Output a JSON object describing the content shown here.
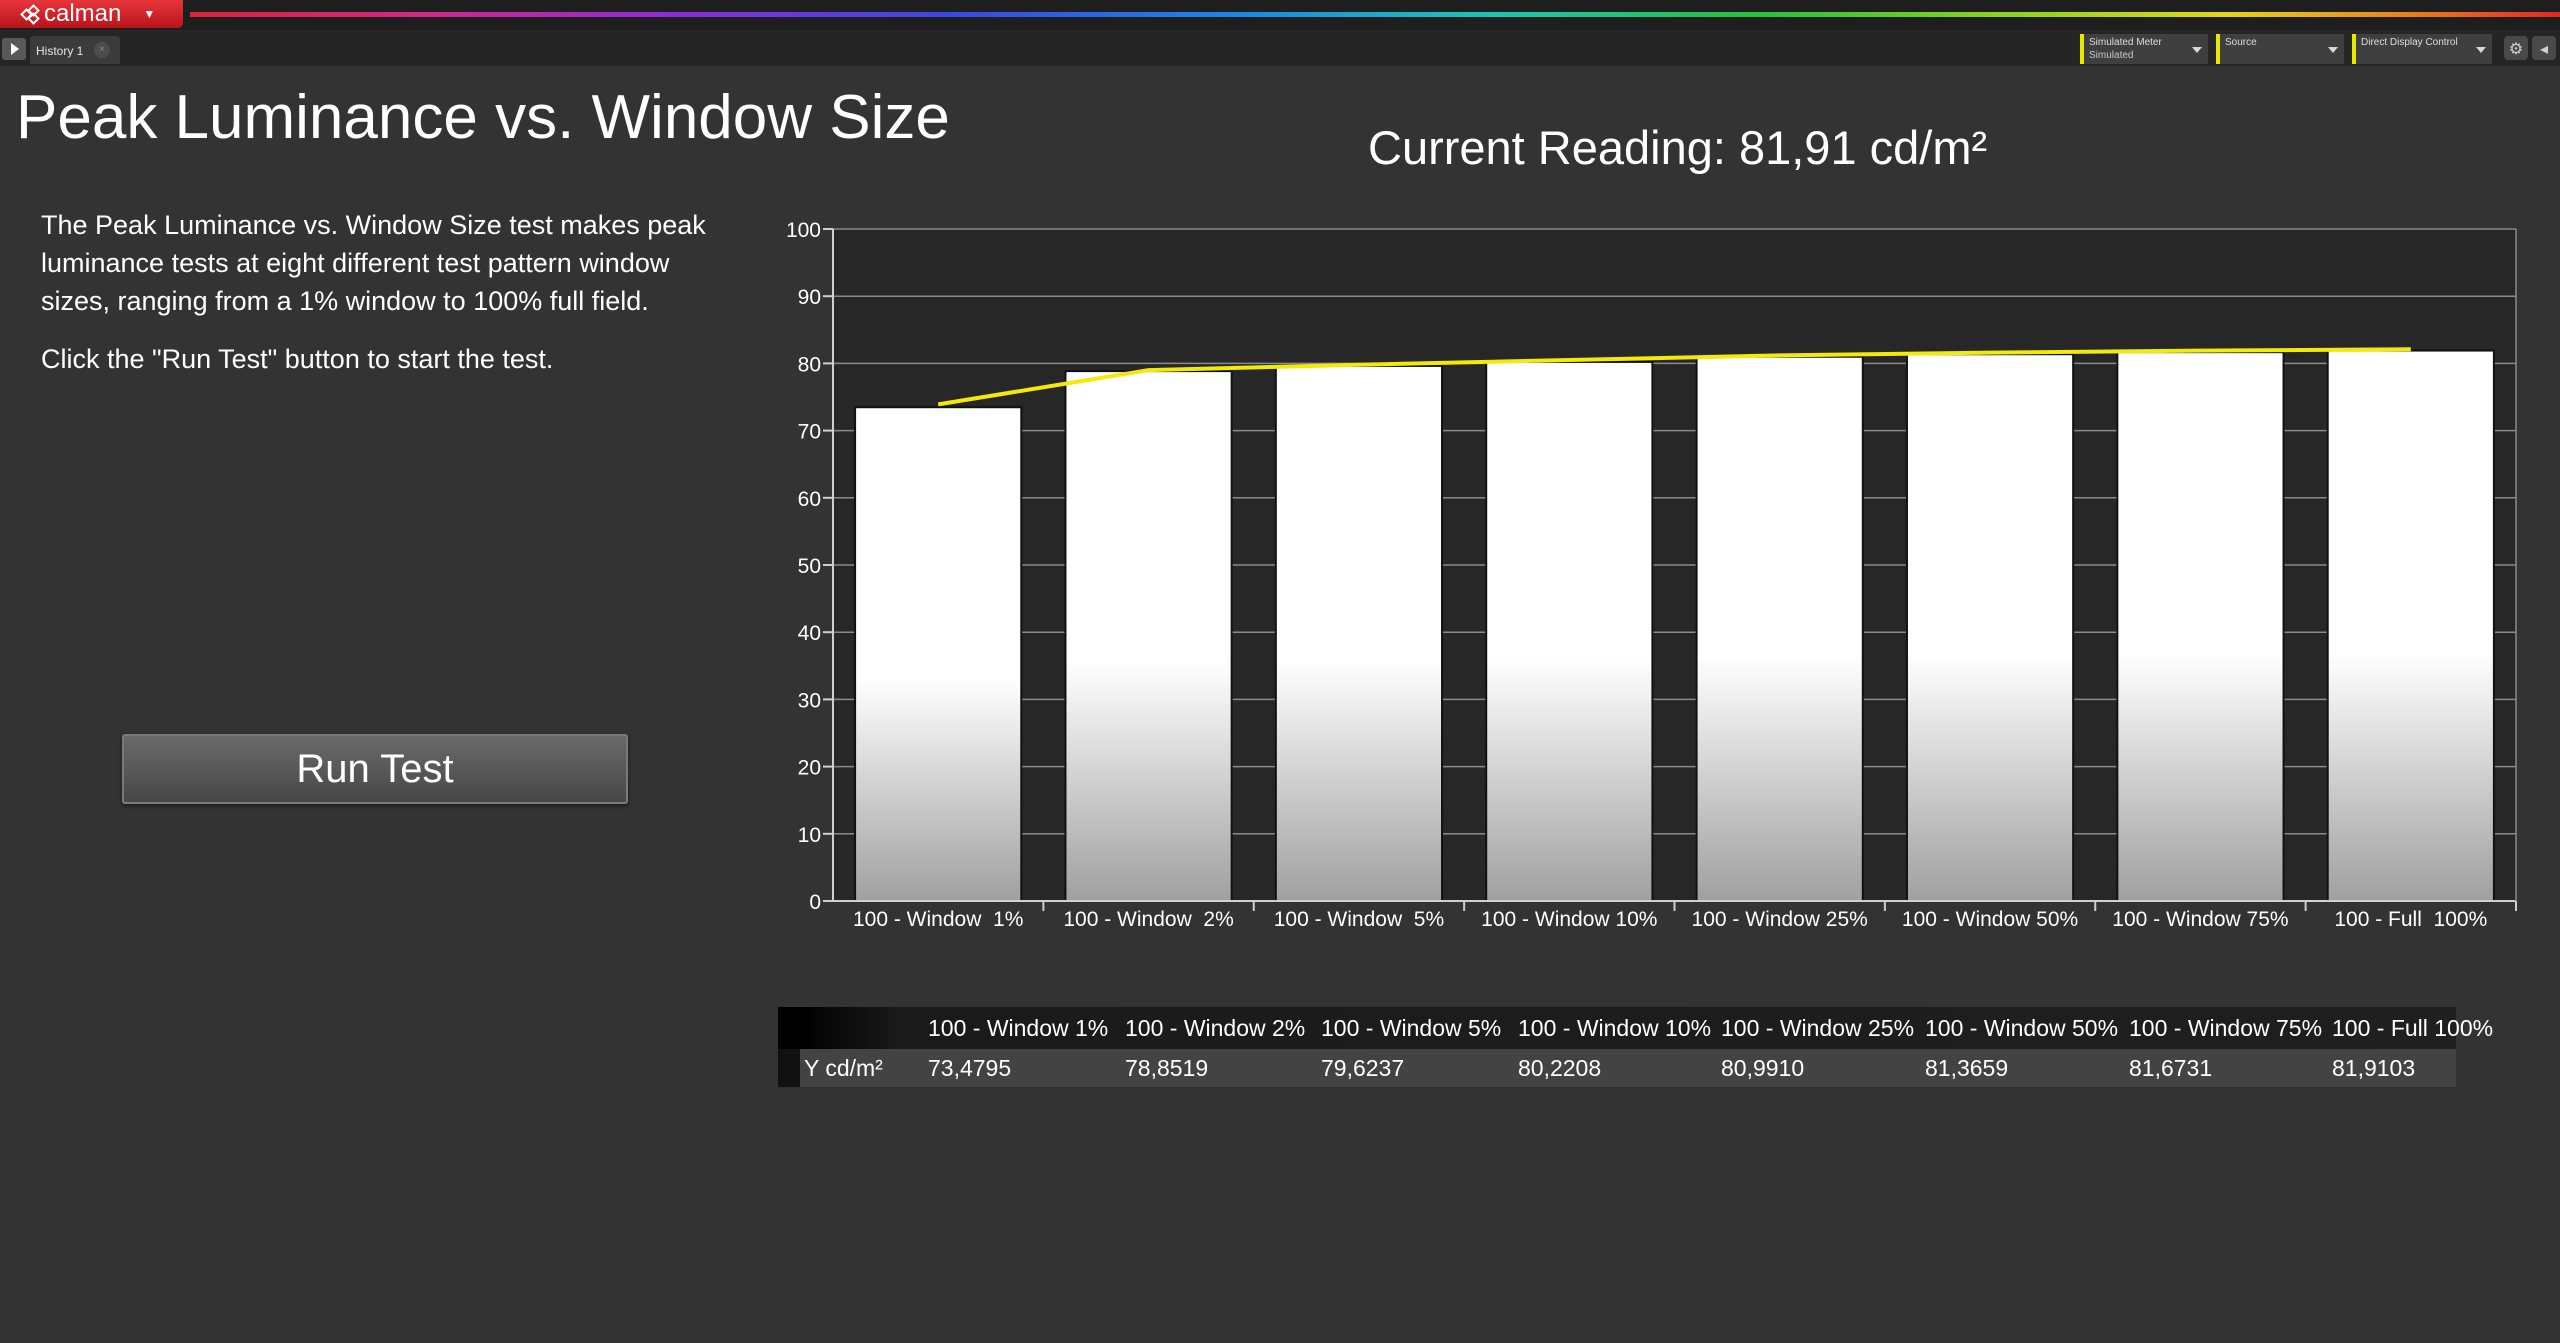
{
  "app": {
    "logo_text": "calman"
  },
  "tabs": [
    {
      "label": "History 1"
    }
  ],
  "toolbar": {
    "meter": {
      "label": "Simulated Meter",
      "value": "Simulated"
    },
    "source": {
      "label": "Source",
      "value": ""
    },
    "display_control": {
      "label": "Direct Display Control",
      "value": ""
    }
  },
  "icons": {
    "play": "play-icon",
    "settings": "gear-icon",
    "collapse": "collapse-icon",
    "tab_close": "close-icon"
  },
  "colors": {
    "accent_red": "#d0202a",
    "target_line": "#f2ea0a",
    "bars": "#ffffff",
    "background": "#333333"
  },
  "page": {
    "title": "Peak Luminance vs. Window Size",
    "description": "The Peak Luminance vs. Window Size test makes peak luminance tests at eight different test pattern window sizes, ranging from a 1% window to 100% full field.",
    "instruction": "Click the \"Run Test\" button to start the test.",
    "run_button": "Run Test",
    "current_reading": "Current Reading: 81,91 cd/m²"
  },
  "chart_data": {
    "type": "bar",
    "title": "",
    "xlabel": "",
    "ylabel": "",
    "ylim": [
      0,
      100
    ],
    "y_ticks": [
      0,
      10,
      20,
      30,
      40,
      50,
      60,
      70,
      80,
      90,
      100
    ],
    "grid": true,
    "categories": [
      "100 - Window  1%",
      "100 - Window  2%",
      "100 - Window  5%",
      "100 - Window 10%",
      "100 - Window 25%",
      "100 - Window 50%",
      "100 - Window 75%",
      "100 - Full  100%"
    ],
    "series": [
      {
        "name": "",
        "type": "bar",
        "values": [
          73.4795,
          78.8519,
          79.6237,
          80.2208,
          80.991,
          81.3659,
          81.6731,
          81.9103
        ]
      },
      {
        "name": "",
        "type": "line",
        "color": "#f2ea0a",
        "values": [
          73.9,
          79.0,
          79.8,
          80.5,
          81.2,
          81.6,
          81.9,
          82.1
        ]
      }
    ]
  },
  "table": {
    "row_label": "Y cd/m²",
    "headers": [
      "100 - Window  1%",
      "100 - Window  2%",
      "100 - Window  5%",
      "100 - Window 10%",
      "100 - Window 25%",
      "100 - Window 50%",
      "100 - Window 75%",
      "100 - Full  100%"
    ],
    "values": [
      "73,4795",
      "78,8519",
      "79,6237",
      "80,2208",
      "80,9910",
      "81,3659",
      "81,6731",
      "81,9103"
    ]
  }
}
